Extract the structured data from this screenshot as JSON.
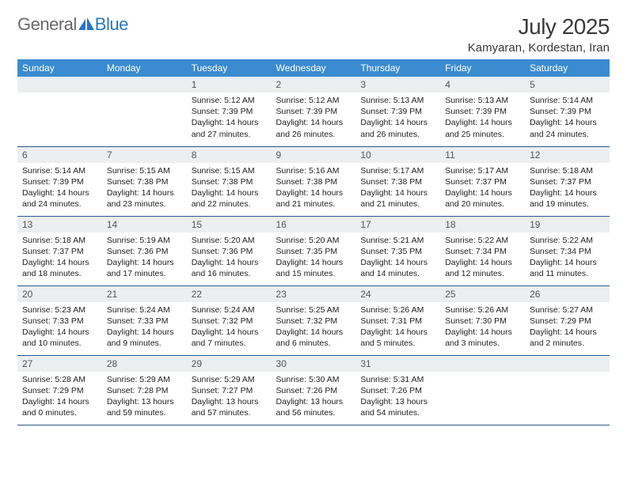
{
  "logo": {
    "text_gray": "General",
    "text_blue": "Blue"
  },
  "title": "July 2025",
  "location": "Kamyaran, Kordestan, Iran",
  "colors": {
    "header_bg": "#3b8bd0",
    "header_text": "#ffffff",
    "daynum_bg": "#eceeef",
    "cell_border": "#2a5a8a",
    "logo_gray": "#6a6a6a",
    "logo_blue": "#2877c4",
    "text": "#222222",
    "page_bg": "#ffffff"
  },
  "weekdays": [
    "Sunday",
    "Monday",
    "Tuesday",
    "Wednesday",
    "Thursday",
    "Friday",
    "Saturday"
  ],
  "weeks": [
    [
      null,
      null,
      {
        "n": "1",
        "sr": "5:12 AM",
        "ss": "7:39 PM",
        "dl": "14 hours and 27 minutes."
      },
      {
        "n": "2",
        "sr": "5:12 AM",
        "ss": "7:39 PM",
        "dl": "14 hours and 26 minutes."
      },
      {
        "n": "3",
        "sr": "5:13 AM",
        "ss": "7:39 PM",
        "dl": "14 hours and 26 minutes."
      },
      {
        "n": "4",
        "sr": "5:13 AM",
        "ss": "7:39 PM",
        "dl": "14 hours and 25 minutes."
      },
      {
        "n": "5",
        "sr": "5:14 AM",
        "ss": "7:39 PM",
        "dl": "14 hours and 24 minutes."
      }
    ],
    [
      {
        "n": "6",
        "sr": "5:14 AM",
        "ss": "7:39 PM",
        "dl": "14 hours and 24 minutes."
      },
      {
        "n": "7",
        "sr": "5:15 AM",
        "ss": "7:38 PM",
        "dl": "14 hours and 23 minutes."
      },
      {
        "n": "8",
        "sr": "5:15 AM",
        "ss": "7:38 PM",
        "dl": "14 hours and 22 minutes."
      },
      {
        "n": "9",
        "sr": "5:16 AM",
        "ss": "7:38 PM",
        "dl": "14 hours and 21 minutes."
      },
      {
        "n": "10",
        "sr": "5:17 AM",
        "ss": "7:38 PM",
        "dl": "14 hours and 21 minutes."
      },
      {
        "n": "11",
        "sr": "5:17 AM",
        "ss": "7:37 PM",
        "dl": "14 hours and 20 minutes."
      },
      {
        "n": "12",
        "sr": "5:18 AM",
        "ss": "7:37 PM",
        "dl": "14 hours and 19 minutes."
      }
    ],
    [
      {
        "n": "13",
        "sr": "5:18 AM",
        "ss": "7:37 PM",
        "dl": "14 hours and 18 minutes."
      },
      {
        "n": "14",
        "sr": "5:19 AM",
        "ss": "7:36 PM",
        "dl": "14 hours and 17 minutes."
      },
      {
        "n": "15",
        "sr": "5:20 AM",
        "ss": "7:36 PM",
        "dl": "14 hours and 16 minutes."
      },
      {
        "n": "16",
        "sr": "5:20 AM",
        "ss": "7:35 PM",
        "dl": "14 hours and 15 minutes."
      },
      {
        "n": "17",
        "sr": "5:21 AM",
        "ss": "7:35 PM",
        "dl": "14 hours and 14 minutes."
      },
      {
        "n": "18",
        "sr": "5:22 AM",
        "ss": "7:34 PM",
        "dl": "14 hours and 12 minutes."
      },
      {
        "n": "19",
        "sr": "5:22 AM",
        "ss": "7:34 PM",
        "dl": "14 hours and 11 minutes."
      }
    ],
    [
      {
        "n": "20",
        "sr": "5:23 AM",
        "ss": "7:33 PM",
        "dl": "14 hours and 10 minutes."
      },
      {
        "n": "21",
        "sr": "5:24 AM",
        "ss": "7:33 PM",
        "dl": "14 hours and 9 minutes."
      },
      {
        "n": "22",
        "sr": "5:24 AM",
        "ss": "7:32 PM",
        "dl": "14 hours and 7 minutes."
      },
      {
        "n": "23",
        "sr": "5:25 AM",
        "ss": "7:32 PM",
        "dl": "14 hours and 6 minutes."
      },
      {
        "n": "24",
        "sr": "5:26 AM",
        "ss": "7:31 PM",
        "dl": "14 hours and 5 minutes."
      },
      {
        "n": "25",
        "sr": "5:26 AM",
        "ss": "7:30 PM",
        "dl": "14 hours and 3 minutes."
      },
      {
        "n": "26",
        "sr": "5:27 AM",
        "ss": "7:29 PM",
        "dl": "14 hours and 2 minutes."
      }
    ],
    [
      {
        "n": "27",
        "sr": "5:28 AM",
        "ss": "7:29 PM",
        "dl": "14 hours and 0 minutes."
      },
      {
        "n": "28",
        "sr": "5:29 AM",
        "ss": "7:28 PM",
        "dl": "13 hours and 59 minutes."
      },
      {
        "n": "29",
        "sr": "5:29 AM",
        "ss": "7:27 PM",
        "dl": "13 hours and 57 minutes."
      },
      {
        "n": "30",
        "sr": "5:30 AM",
        "ss": "7:26 PM",
        "dl": "13 hours and 56 minutes."
      },
      {
        "n": "31",
        "sr": "5:31 AM",
        "ss": "7:26 PM",
        "dl": "13 hours and 54 minutes."
      },
      null,
      null
    ]
  ],
  "labels": {
    "sunrise": "Sunrise: ",
    "sunset": "Sunset: ",
    "daylight": "Daylight: "
  }
}
